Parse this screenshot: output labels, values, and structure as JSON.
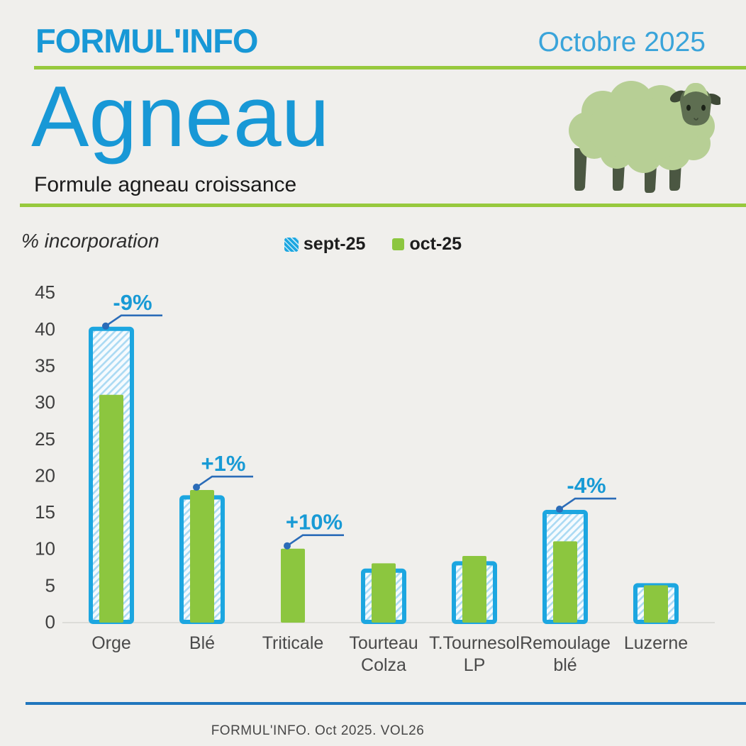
{
  "header": {
    "brand": "FORMUL'INFO",
    "issue": "Octobre 2025",
    "title": "Agneau",
    "subtitle": "Formule agneau croissance"
  },
  "axis_label": "% incorporation",
  "legend": {
    "sept": "sept-25",
    "oct": "oct-25"
  },
  "chart_data": {
    "type": "bar",
    "title": "Agneau - Formule agneau croissance",
    "categories": [
      "Orge",
      "Blé",
      "Triticale",
      "Tourteau Colza",
      "T.Tournesol LP",
      "Remoulage blé",
      "Luzerne"
    ],
    "series": [
      {
        "name": "sept-25",
        "style": "hatched-blue",
        "values": [
          40,
          17,
          0,
          7,
          8,
          15,
          5
        ]
      },
      {
        "name": "oct-25",
        "style": "solid-green",
        "values": [
          31,
          18,
          10,
          8,
          9,
          11,
          5
        ]
      }
    ],
    "annotations": [
      {
        "index": 0,
        "category": "Orge",
        "label": "-9%"
      },
      {
        "index": 1,
        "category": "Blé",
        "label": "+1%"
      },
      {
        "index": 2,
        "category": "Triticale",
        "label": "+10%"
      },
      {
        "index": 5,
        "category": "Remoulage blé",
        "label": "-4%"
      }
    ],
    "xlabel": "",
    "ylabel": "% incorporation",
    "ylim": [
      0,
      45
    ],
    "yticks": [
      0,
      5,
      10,
      15,
      20,
      25,
      30,
      35,
      40,
      45
    ],
    "legend_position": "top-center",
    "grid": false
  },
  "footer": {
    "text": "FORMUL'INFO. Oct 2025. VOL26"
  },
  "colors": {
    "background": "#f0efec",
    "brand_blue": "#1898d6",
    "issue_blue": "#3aa4da",
    "accent_green": "#97c93d",
    "bar_blue": "#1ca6e0",
    "bar_green": "#8cc63f",
    "hatch_line_blue": "#abdaf3",
    "hatch_bg": "#f6fbfe",
    "annotation_text_blue": "#189ad5",
    "annotation_line_blue": "#2b6cb8",
    "axis_text": "#3f3f3f",
    "footer_line_blue": "#2076bd"
  },
  "illustration": {
    "name": "sheep",
    "body_color": "#b7cf95",
    "face_color": "#5e6e51",
    "leg_color": "#4b5742"
  }
}
